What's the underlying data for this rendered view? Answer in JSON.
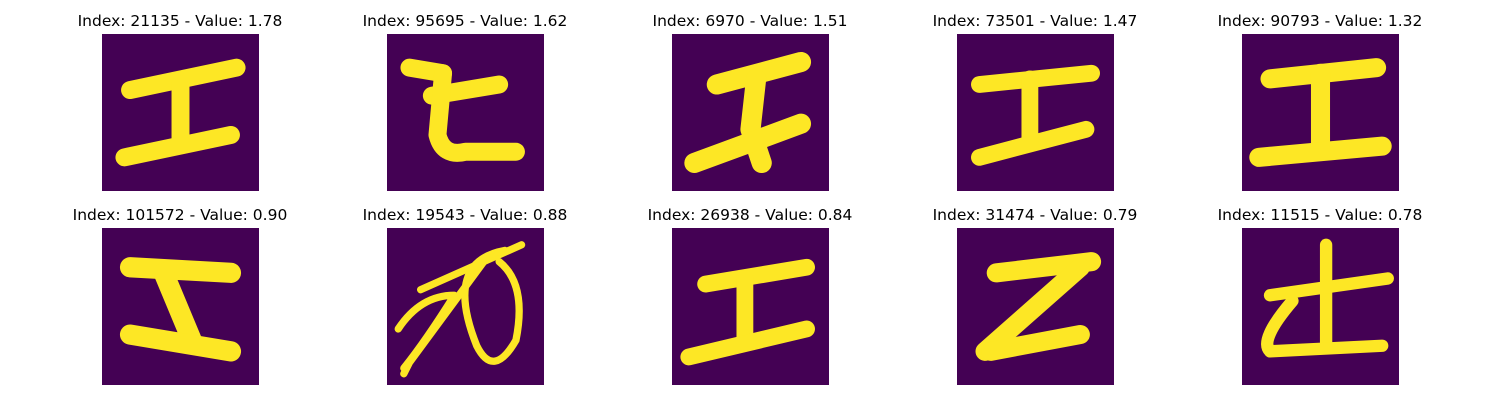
{
  "colors": {
    "background": "#440154",
    "stroke": "#FDE725"
  },
  "panels": [
    {
      "index": "21135",
      "value": "1.78",
      "title": "Index: 21135 - Value: 1.78"
    },
    {
      "index": "95695",
      "value": "1.62",
      "title": "Index: 95695 - Value: 1.62"
    },
    {
      "index": "6970",
      "value": "1.51",
      "title": "Index: 6970 - Value: 1.51"
    },
    {
      "index": "73501",
      "value": "1.47",
      "title": "Index: 73501 - Value: 1.47"
    },
    {
      "index": "90793",
      "value": "1.32",
      "title": "Index: 90793 - Value: 1.32"
    },
    {
      "index": "101572",
      "value": "0.90",
      "title": "Index: 101572 - Value: 0.90"
    },
    {
      "index": "19543",
      "value": "0.88",
      "title": "Index: 19543 - Value: 0.88"
    },
    {
      "index": "26938",
      "value": "0.84",
      "title": "Index: 26938 - Value: 0.84"
    },
    {
      "index": "31474",
      "value": "0.79",
      "title": "Index: 31474 - Value: 0.79"
    },
    {
      "index": "11515",
      "value": "0.78",
      "title": "Index: 11515 - Value: 0.78"
    }
  ]
}
